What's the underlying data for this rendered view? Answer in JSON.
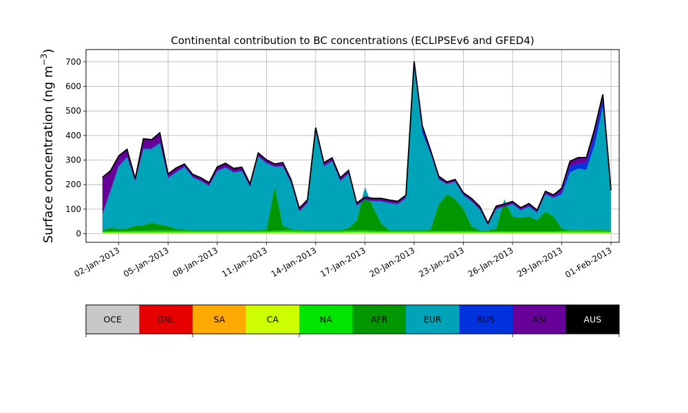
{
  "chart_data": {
    "type": "area",
    "stacked": true,
    "title": "Continental contribution to BC concentrations (ECLIPSEv6 and GFED4)",
    "ylabel": "Surface concentration (ng m",
    "ylabel_sup": "−3",
    "ylabel_close": ")",
    "xlabel": "",
    "xlim": [
      "2012-12-31T00:00",
      "2013-02-01T12:00"
    ],
    "ylim": [
      -35,
      750
    ],
    "yticks": [
      0,
      100,
      200,
      300,
      400,
      500,
      600,
      700
    ],
    "xtick_dates": [
      "2013-01-02",
      "2013-01-05",
      "2013-01-08",
      "2013-01-11",
      "2013-01-14",
      "2013-01-17",
      "2013-01-20",
      "2013-01-23",
      "2013-01-26",
      "2013-01-29",
      "2013-02-01"
    ],
    "xtick_labels": [
      "02-Jan-2013",
      "05-Jan-2013",
      "08-Jan-2013",
      "11-Jan-2013",
      "14-Jan-2013",
      "17-Jan-2013",
      "20-Jan-2013",
      "23-Jan-2013",
      "26-Jan-2013",
      "29-Jan-2013",
      "01-Feb-2013"
    ],
    "grid": true,
    "x": [
      "2013-01-01T00:00",
      "2013-01-01T12:00",
      "2013-01-02T00:00",
      "2013-01-02T12:00",
      "2013-01-03T00:00",
      "2013-01-03T12:00",
      "2013-01-04T00:00",
      "2013-01-04T12:00",
      "2013-01-05T00:00",
      "2013-01-05T12:00",
      "2013-01-06T00:00",
      "2013-01-06T12:00",
      "2013-01-07T00:00",
      "2013-01-07T12:00",
      "2013-01-08T00:00",
      "2013-01-08T12:00",
      "2013-01-09T00:00",
      "2013-01-09T12:00",
      "2013-01-10T00:00",
      "2013-01-10T12:00",
      "2013-01-11T00:00",
      "2013-01-11T12:00",
      "2013-01-12T00:00",
      "2013-01-12T12:00",
      "2013-01-13T00:00",
      "2013-01-13T12:00",
      "2013-01-14T00:00",
      "2013-01-14T12:00",
      "2013-01-15T00:00",
      "2013-01-15T12:00",
      "2013-01-16T00:00",
      "2013-01-16T12:00",
      "2013-01-17T00:00",
      "2013-01-17T12:00",
      "2013-01-18T00:00",
      "2013-01-18T12:00",
      "2013-01-19T00:00",
      "2013-01-19T12:00",
      "2013-01-20T00:00",
      "2013-01-20T12:00",
      "2013-01-21T00:00",
      "2013-01-21T12:00",
      "2013-01-22T00:00",
      "2013-01-22T12:00",
      "2013-01-23T00:00",
      "2013-01-23T12:00",
      "2013-01-24T00:00",
      "2013-01-24T12:00",
      "2013-01-25T00:00",
      "2013-01-25T12:00",
      "2013-01-26T00:00",
      "2013-01-26T12:00",
      "2013-01-27T00:00",
      "2013-01-27T12:00",
      "2013-01-28T00:00",
      "2013-01-28T12:00",
      "2013-01-29T00:00",
      "2013-01-29T12:00",
      "2013-01-30T00:00",
      "2013-01-30T12:00",
      "2013-01-31T00:00",
      "2013-01-31T12:00",
      "2013-02-01T00:00"
    ],
    "series": [
      {
        "name": "OCE",
        "color": "#c8c8c8",
        "values": [
          2,
          2,
          2,
          2,
          2,
          2,
          2,
          2,
          2,
          2,
          2,
          2,
          2,
          2,
          2,
          2,
          2,
          2,
          2,
          2,
          2,
          2,
          2,
          2,
          2,
          2,
          2,
          2,
          2,
          2,
          2,
          2,
          2,
          2,
          2,
          2,
          2,
          2,
          2,
          2,
          2,
          2,
          2,
          2,
          2,
          2,
          2,
          2,
          2,
          2,
          2,
          2,
          2,
          2,
          2,
          2,
          2,
          2,
          2,
          2,
          2,
          2,
          2
        ]
      },
      {
        "name": "GNL",
        "color": "#e60000",
        "values": [
          0,
          0,
          0,
          0,
          0,
          0,
          0,
          0,
          0,
          0,
          0,
          0,
          0,
          0,
          0,
          0,
          0,
          0,
          0,
          0,
          0,
          0,
          0,
          0,
          0,
          0,
          0,
          0,
          0,
          0,
          0,
          0,
          0,
          0,
          0,
          0,
          0,
          0,
          0,
          0,
          0,
          0,
          0,
          0,
          0,
          0,
          0,
          0,
          0,
          0,
          0,
          0,
          0,
          0,
          0,
          0,
          0,
          0,
          0,
          0,
          0,
          0,
          0
        ]
      },
      {
        "name": "SA",
        "color": "#ffaa00",
        "values": [
          1,
          1,
          1,
          1,
          1,
          1,
          1,
          1,
          1,
          1,
          1,
          1,
          1,
          1,
          1,
          1,
          1,
          1,
          1,
          1,
          1,
          1,
          1,
          1,
          1,
          1,
          1,
          1,
          1,
          1,
          1,
          1,
          1,
          1,
          1,
          1,
          1,
          1,
          1,
          1,
          1,
          1,
          1,
          1,
          1,
          1,
          1,
          1,
          1,
          1,
          1,
          1,
          1,
          1,
          1,
          1,
          1,
          1,
          1,
          1,
          1,
          1,
          1
        ]
      },
      {
        "name": "CA",
        "color": "#cdff00",
        "values": [
          2,
          2,
          2,
          2,
          2,
          2,
          2,
          2,
          2,
          2,
          2,
          2,
          2,
          2,
          2,
          2,
          2,
          2,
          2,
          2,
          2,
          3,
          3,
          3,
          2,
          2,
          2,
          2,
          2,
          2,
          3,
          3,
          3,
          2,
          2,
          2,
          2,
          2,
          2,
          2,
          2,
          2,
          2,
          2,
          2,
          2,
          2,
          2,
          2,
          2,
          2,
          2,
          2,
          2,
          2,
          2,
          2,
          2,
          2,
          2,
          2,
          2,
          2
        ]
      },
      {
        "name": "NA",
        "color": "#00e400",
        "values": [
          5,
          5,
          6,
          6,
          7,
          7,
          8,
          8,
          8,
          7,
          7,
          6,
          6,
          6,
          6,
          6,
          6,
          6,
          6,
          6,
          6,
          6,
          7,
          8,
          7,
          6,
          6,
          6,
          6,
          6,
          7,
          7,
          8,
          7,
          6,
          6,
          6,
          6,
          6,
          6,
          6,
          6,
          6,
          6,
          6,
          6,
          5,
          5,
          5,
          5,
          5,
          5,
          5,
          5,
          5,
          5,
          6,
          7,
          7,
          7,
          8,
          7,
          6
        ]
      },
      {
        "name": "AFR",
        "color": "#009700",
        "values": [
          3,
          15,
          8,
          10,
          20,
          22,
          32,
          25,
          18,
          8,
          4,
          3,
          3,
          3,
          3,
          3,
          3,
          3,
          3,
          3,
          5,
          180,
          20,
          5,
          3,
          3,
          3,
          3,
          3,
          3,
          10,
          40,
          175,
          95,
          30,
          3,
          3,
          3,
          3,
          3,
          5,
          110,
          150,
          130,
          90,
          20,
          3,
          3,
          10,
          130,
          60,
          55,
          60,
          45,
          80,
          60,
          10,
          3,
          3,
          3,
          3,
          3,
          3
        ]
      },
      {
        "name": "EUR",
        "color": "#00a4b8",
        "values": [
          65,
          150,
          255,
          290,
          180,
          310,
          300,
          330,
          195,
          230,
          255,
          215,
          200,
          180,
          240,
          255,
          235,
          240,
          175,
          300,
          270,
          80,
          240,
          185,
          75,
          110,
          400,
          260,
          280,
          200,
          220,
          60,
          -50,
          25,
          90,
          110,
          105,
          130,
          660,
          395,
          310,
          100,
          40,
          70,
          55,
          100,
          85,
          20,
          80,
          -30,
          50,
          30,
          40,
          30,
          70,
          75,
          140,
          235,
          250,
          245,
          345,
          500,
          150
        ]
      },
      {
        "name": "RUS",
        "color": "#0033dd",
        "values": [
          1,
          2,
          3,
          3,
          2,
          3,
          3,
          3,
          2,
          3,
          3,
          3,
          2,
          2,
          3,
          3,
          3,
          3,
          2,
          3,
          3,
          2,
          3,
          3,
          2,
          2,
          3,
          3,
          3,
          2,
          3,
          2,
          2,
          2,
          3,
          3,
          3,
          3,
          8,
          15,
          5,
          3,
          2,
          2,
          3,
          3,
          3,
          2,
          2,
          3,
          3,
          3,
          3,
          3,
          3,
          3,
          10,
          25,
          20,
          30,
          40,
          30,
          5
        ]
      },
      {
        "name": "ASI",
        "color": "#660099",
        "values": [
          150,
          80,
          40,
          30,
          10,
          40,
          35,
          40,
          15,
          15,
          10,
          10,
          12,
          12,
          15,
          15,
          14,
          14,
          12,
          12,
          12,
          10,
          14,
          13,
          12,
          12,
          15,
          12,
          12,
          12,
          12,
          10,
          8,
          10,
          10,
          10,
          10,
          10,
          20,
          15,
          10,
          10,
          8,
          8,
          8,
          10,
          10,
          8,
          10,
          8,
          8,
          8,
          10,
          8,
          10,
          10,
          15,
          20,
          25,
          20,
          25,
          22,
          8
        ]
      },
      {
        "name": "AUS",
        "color": "#000000",
        "values": [
          0,
          0,
          0,
          0,
          0,
          0,
          0,
          0,
          0,
          0,
          0,
          0,
          0,
          0,
          0,
          0,
          0,
          0,
          0,
          0,
          0,
          0,
          0,
          0,
          0,
          0,
          0,
          0,
          0,
          0,
          0,
          0,
          0,
          0,
          0,
          0,
          0,
          0,
          0,
          0,
          0,
          0,
          0,
          0,
          0,
          0,
          0,
          0,
          0,
          0,
          0,
          0,
          0,
          0,
          0,
          0,
          0,
          0,
          0,
          0,
          0,
          0,
          0
        ]
      }
    ],
    "total_line_color": "#000000"
  },
  "legend": {
    "items": [
      {
        "label": "OCE",
        "color": "#c8c8c8"
      },
      {
        "label": "GNL",
        "color": "#e60000"
      },
      {
        "label": "SA",
        "color": "#ffaa00"
      },
      {
        "label": "CA",
        "color": "#cdff00"
      },
      {
        "label": "NA",
        "color": "#00e400"
      },
      {
        "label": "AFR",
        "color": "#009700"
      },
      {
        "label": "EUR",
        "color": "#00a4b8"
      },
      {
        "label": "RUS",
        "color": "#0033dd"
      },
      {
        "label": "ASI",
        "color": "#660099"
      },
      {
        "label": "AUS",
        "color": "#000000"
      }
    ],
    "label_color_on_dark": "#ffffff"
  }
}
